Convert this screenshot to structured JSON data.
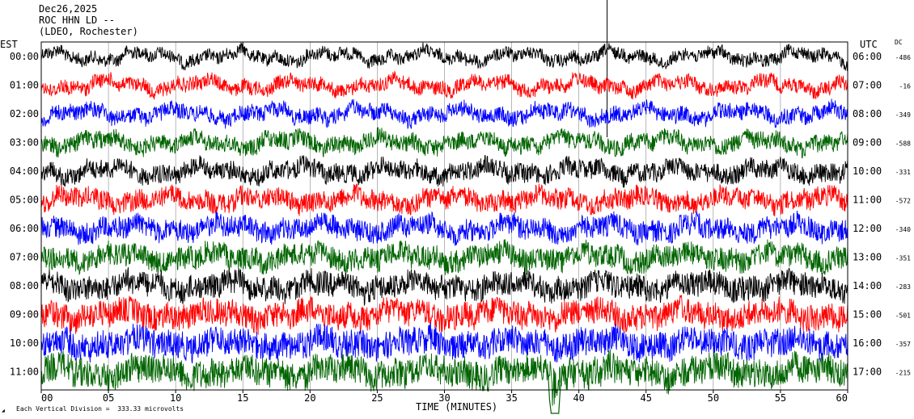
{
  "header": {
    "date": "Dec26,2025",
    "station": "ROC HHN LD --",
    "location": "(LDEO, Rochester)"
  },
  "left_axis_label": "EST",
  "right_axis_label": "UTC",
  "dc_label": "DC",
  "footer": {
    "scale_note": "Each Vertical Division =  333.33 microvolts",
    "logo_text": "LDEO"
  },
  "chart_data": {
    "type": "line",
    "title": "",
    "xlabel": "TIME (MINUTES)",
    "ylabel": "",
    "xlim": [
      0,
      60
    ],
    "x_ticks": [
      "00",
      "05",
      "10",
      "15",
      "20",
      "25",
      "30",
      "35",
      "40",
      "45",
      "50",
      "55",
      "60"
    ],
    "rows": [
      {
        "est": "00:00",
        "utc": "06:00",
        "dc": "-486",
        "color": "#000000"
      },
      {
        "est": "01:00",
        "utc": "07:00",
        "dc": "-16",
        "color": "#ff0000"
      },
      {
        "est": "02:00",
        "utc": "08:00",
        "dc": "-349",
        "color": "#0000ff"
      },
      {
        "est": "03:00",
        "utc": "09:00",
        "dc": "-588",
        "color": "#006400"
      },
      {
        "est": "04:00",
        "utc": "10:00",
        "dc": "-331",
        "color": "#000000"
      },
      {
        "est": "05:00",
        "utc": "11:00",
        "dc": "-572",
        "color": "#ff0000"
      },
      {
        "est": "06:00",
        "utc": "12:00",
        "dc": "-340",
        "color": "#0000ff"
      },
      {
        "est": "07:00",
        "utc": "13:00",
        "dc": "-351",
        "color": "#006400"
      },
      {
        "est": "08:00",
        "utc": "14:00",
        "dc": "-283",
        "color": "#000000"
      },
      {
        "est": "09:00",
        "utc": "15:00",
        "dc": "-501",
        "color": "#ff0000"
      },
      {
        "est": "10:00",
        "utc": "16:00",
        "dc": "-357",
        "color": "#0000ff"
      },
      {
        "est": "11:00",
        "utc": "17:00",
        "dc": "-215",
        "color": "#006400"
      }
    ],
    "events": [
      {
        "row": 0,
        "minute": 42.1,
        "kind": "spike"
      },
      {
        "row": 11,
        "minute": 38.0,
        "kind": "signal"
      }
    ],
    "grid_vertical": true,
    "legend": "none"
  }
}
